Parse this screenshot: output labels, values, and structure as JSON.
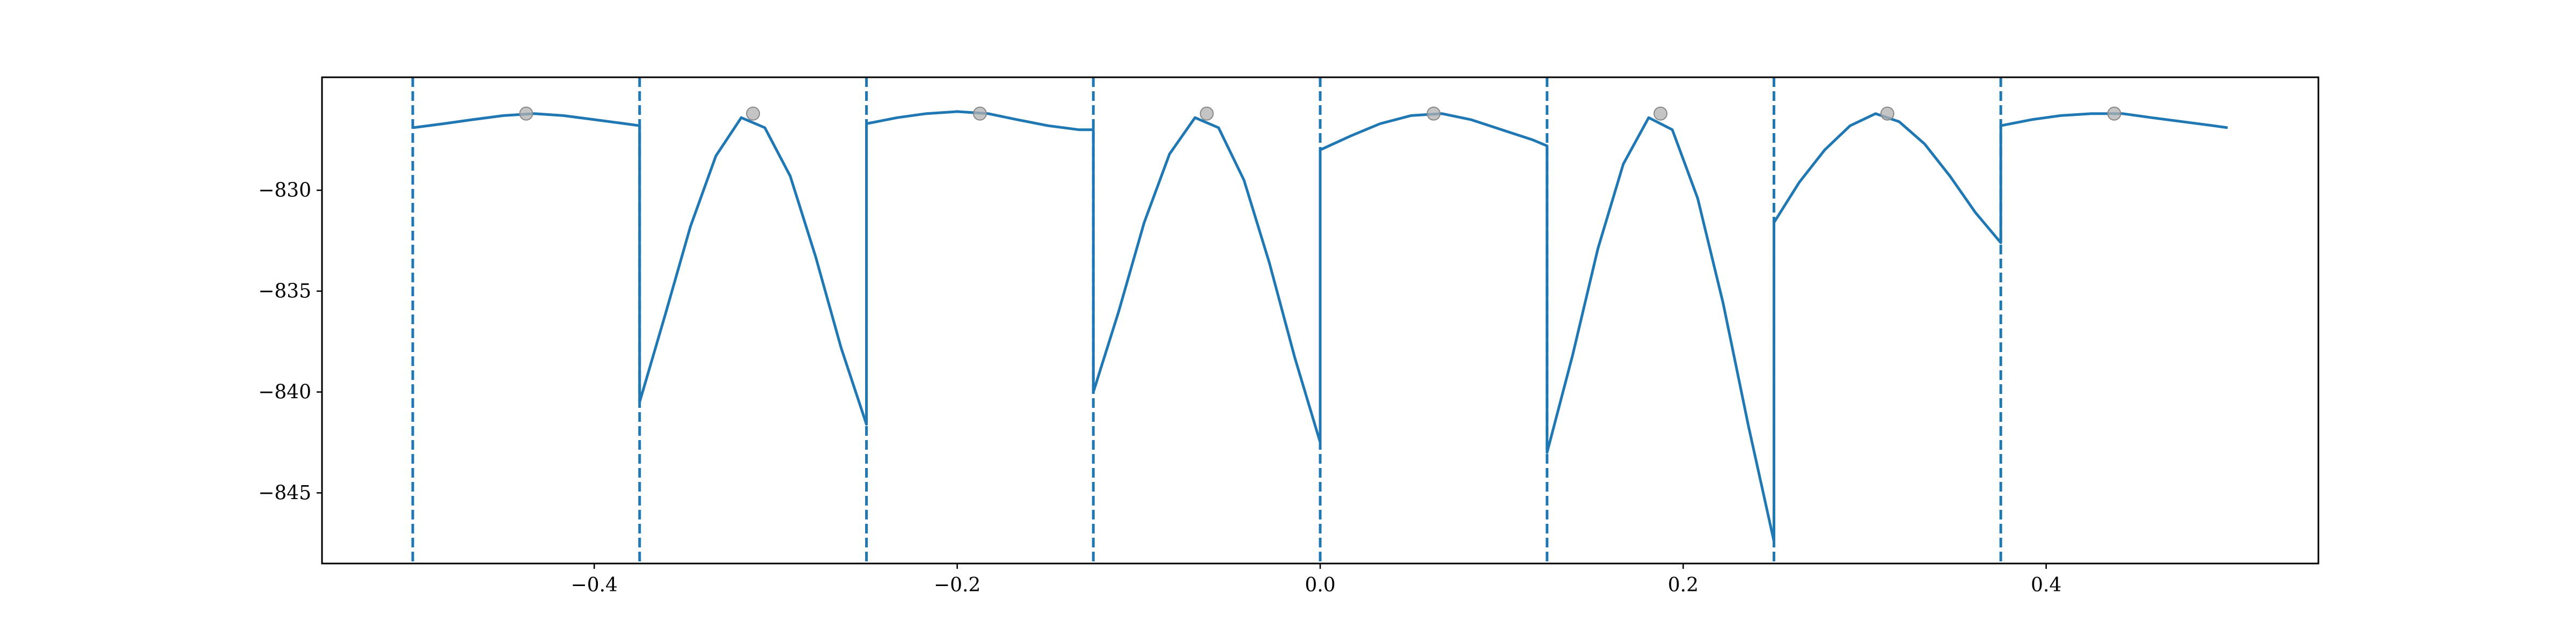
{
  "chart_data": {
    "type": "line",
    "title": "",
    "xlabel": "",
    "ylabel": "",
    "xlim": [
      -0.55,
      0.55
    ],
    "ylim": [
      -848.5,
      -824.4
    ],
    "x_ticks": [
      -0.4,
      -0.2,
      0.0,
      0.2,
      0.4
    ],
    "x_tick_labels": [
      "−0.4",
      "−0.2",
      "0.0",
      "0.2",
      "0.4"
    ],
    "y_ticks": [
      -830,
      -835,
      -840,
      -845
    ],
    "y_tick_labels": [
      "−830",
      "−835",
      "−840",
      "−845"
    ],
    "grid": false,
    "legend": "none",
    "colors": {
      "line": "#1f77b4",
      "marker": "#b0b0b0",
      "axes": "#000000"
    },
    "vlines": [
      -0.5,
      -0.375,
      -0.25,
      -0.125,
      0.0,
      0.125,
      0.25,
      0.375
    ],
    "series": [
      {
        "values": [
          {
            "x": -0.5,
            "y": -826.9
          },
          {
            "x": -0.483,
            "y": -826.7
          },
          {
            "x": -0.467,
            "y": -826.5
          },
          {
            "x": -0.45,
            "y": -826.3
          },
          {
            "x": -0.433,
            "y": -826.2
          },
          {
            "x": -0.417,
            "y": -826.3
          },
          {
            "x": -0.4,
            "y": -826.5
          },
          {
            "x": -0.383,
            "y": -826.7
          },
          {
            "x": -0.375,
            "y": -826.8
          },
          {
            "x": -0.375,
            "y": -840.5
          },
          {
            "x": -0.361,
            "y": -836.2
          },
          {
            "x": -0.347,
            "y": -831.8
          },
          {
            "x": -0.333,
            "y": -828.3
          },
          {
            "x": -0.319,
            "y": -826.4
          },
          {
            "x": -0.306,
            "y": -826.9
          },
          {
            "x": -0.292,
            "y": -829.3
          },
          {
            "x": -0.278,
            "y": -833.3
          },
          {
            "x": -0.264,
            "y": -837.8
          },
          {
            "x": -0.25,
            "y": -841.6
          },
          {
            "x": -0.25,
            "y": -826.7
          },
          {
            "x": -0.233,
            "y": -826.4
          },
          {
            "x": -0.217,
            "y": -826.2
          },
          {
            "x": -0.2,
            "y": -826.1
          },
          {
            "x": -0.183,
            "y": -826.2
          },
          {
            "x": -0.167,
            "y": -826.5
          },
          {
            "x": -0.15,
            "y": -826.8
          },
          {
            "x": -0.133,
            "y": -827.0
          },
          {
            "x": -0.125,
            "y": -827.0
          },
          {
            "x": -0.125,
            "y": -840.0
          },
          {
            "x": -0.111,
            "y": -836.0
          },
          {
            "x": -0.097,
            "y": -831.6
          },
          {
            "x": -0.083,
            "y": -828.2
          },
          {
            "x": -0.069,
            "y": -826.4
          },
          {
            "x": -0.056,
            "y": -826.9
          },
          {
            "x": -0.042,
            "y": -829.5
          },
          {
            "x": -0.028,
            "y": -833.6
          },
          {
            "x": -0.014,
            "y": -838.3
          },
          {
            "x": 0.0,
            "y": -842.5
          },
          {
            "x": 0.0,
            "y": -828.0
          },
          {
            "x": 0.017,
            "y": -827.3
          },
          {
            "x": 0.033,
            "y": -826.7
          },
          {
            "x": 0.05,
            "y": -826.3
          },
          {
            "x": 0.067,
            "y": -826.2
          },
          {
            "x": 0.083,
            "y": -826.5
          },
          {
            "x": 0.1,
            "y": -827.0
          },
          {
            "x": 0.117,
            "y": -827.5
          },
          {
            "x": 0.125,
            "y": -827.8
          },
          {
            "x": 0.125,
            "y": -843.0
          },
          {
            "x": 0.139,
            "y": -838.2
          },
          {
            "x": 0.153,
            "y": -832.9
          },
          {
            "x": 0.167,
            "y": -828.7
          },
          {
            "x": 0.181,
            "y": -826.4
          },
          {
            "x": 0.194,
            "y": -827.0
          },
          {
            "x": 0.208,
            "y": -830.4
          },
          {
            "x": 0.222,
            "y": -835.6
          },
          {
            "x": 0.236,
            "y": -841.7
          },
          {
            "x": 0.25,
            "y": -847.4
          },
          {
            "x": 0.25,
            "y": -831.6
          },
          {
            "x": 0.264,
            "y": -829.6
          },
          {
            "x": 0.278,
            "y": -828.0
          },
          {
            "x": 0.292,
            "y": -826.8
          },
          {
            "x": 0.306,
            "y": -826.2
          },
          {
            "x": 0.319,
            "y": -826.6
          },
          {
            "x": 0.333,
            "y": -827.7
          },
          {
            "x": 0.347,
            "y": -829.3
          },
          {
            "x": 0.361,
            "y": -831.1
          },
          {
            "x": 0.375,
            "y": -832.6
          },
          {
            "x": 0.375,
            "y": -826.8
          },
          {
            "x": 0.392,
            "y": -826.5
          },
          {
            "x": 0.408,
            "y": -826.3
          },
          {
            "x": 0.425,
            "y": -826.2
          },
          {
            "x": 0.442,
            "y": -826.2
          },
          {
            "x": 0.458,
            "y": -826.4
          },
          {
            "x": 0.475,
            "y": -826.6
          },
          {
            "x": 0.492,
            "y": -826.8
          },
          {
            "x": 0.5,
            "y": -826.9
          }
        ]
      }
    ],
    "markers": [
      {
        "x": -0.4375,
        "y": -826.2
      },
      {
        "x": -0.3125,
        "y": -826.2
      },
      {
        "x": -0.1875,
        "y": -826.2
      },
      {
        "x": -0.0625,
        "y": -826.2
      },
      {
        "x": 0.0625,
        "y": -826.2
      },
      {
        "x": 0.1875,
        "y": -826.2
      },
      {
        "x": 0.3125,
        "y": -826.2
      },
      {
        "x": 0.4375,
        "y": -826.2
      }
    ]
  }
}
